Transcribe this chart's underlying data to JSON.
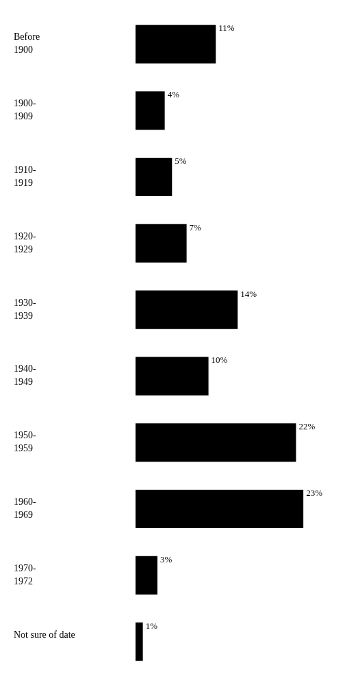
{
  "chart_data": {
    "type": "bar",
    "orientation": "horizontal",
    "categories": [
      "Before\n1900",
      "1900-\n1909",
      "1910-\n1919",
      "1920-\n1929",
      "1930-\n1939",
      "1940-\n1949",
      "1950-\n1959",
      "1960-\n1969",
      "1970-\n1972",
      "Not sure of date"
    ],
    "values": [
      11,
      4,
      5,
      7,
      14,
      10,
      22,
      23,
      3,
      1
    ],
    "value_labels": [
      "11%",
      "4%",
      "5%",
      "7%",
      "14%",
      "10%",
      "22%",
      "23%",
      "3%",
      "1%"
    ],
    "color": "#000000"
  }
}
